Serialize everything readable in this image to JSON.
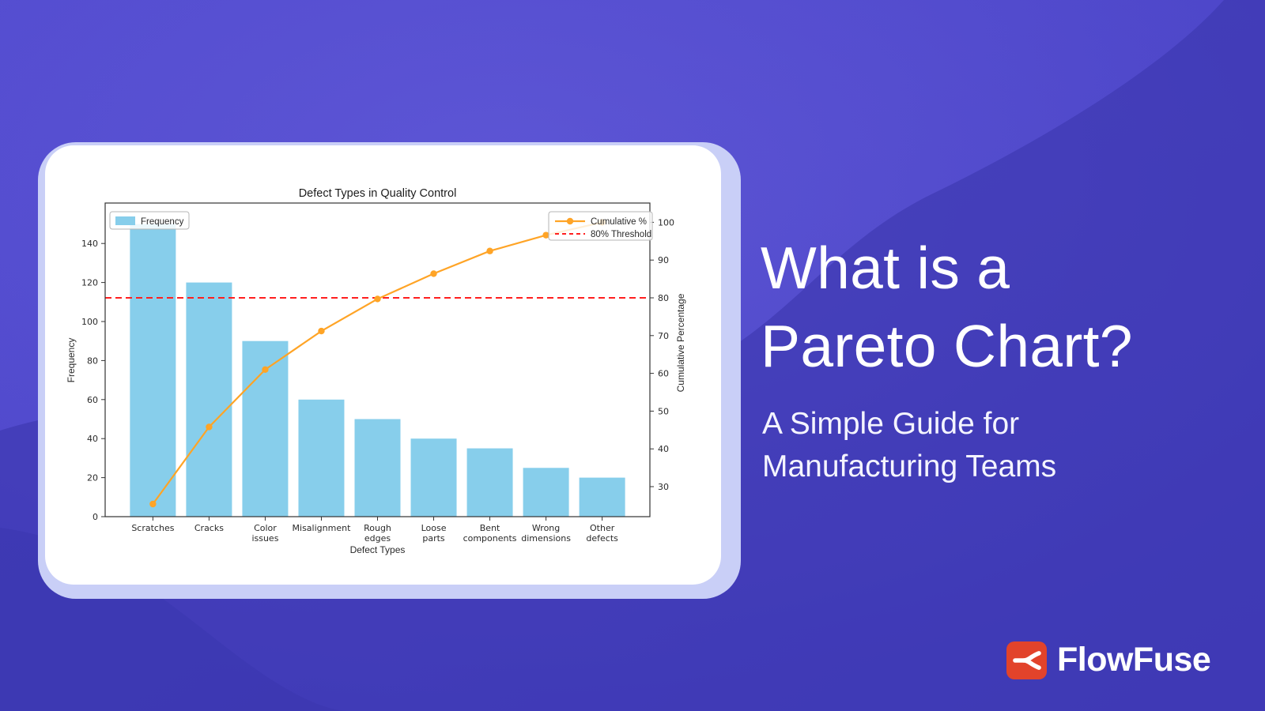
{
  "palette": {
    "bg_base": "#4a43c6",
    "bg_dark_wave": "#3b37ae",
    "bg_light_wave": "#6a63e0",
    "card_bg": "#ffffff",
    "card_glow": "#c9cff7",
    "brand_red": "#e2432b",
    "text_on_dark": "#ffffff"
  },
  "hero": {
    "title_line1": "What is a",
    "title_line2": "Pareto Chart?",
    "subtitle_line1": "A Simple Guide for",
    "subtitle_line2": "Manufacturing Teams"
  },
  "brand": {
    "name": "FlowFuse"
  },
  "chart_data": {
    "type": "bar",
    "subtype": "pareto (bar + cumulative line)",
    "title": "Defect Types in Quality Control",
    "xlabel": "Defect Types",
    "ylabel_left": "Frequency",
    "ylabel_right": "Cumulative Percentage",
    "categories": [
      "Scratches",
      "Cracks",
      "Color issues",
      "Misalignment",
      "Rough edges",
      "Loose parts",
      "Bent components",
      "Wrong dimensions",
      "Other defects"
    ],
    "tick_lines": [
      [
        "Scratches"
      ],
      [
        "Cracks"
      ],
      [
        "Color",
        "issues"
      ],
      [
        "Misalignment"
      ],
      [
        "Rough",
        "edges"
      ],
      [
        "Loose",
        "parts"
      ],
      [
        "Bent",
        "components"
      ],
      [
        "Wrong",
        "dimensions"
      ],
      [
        "Other",
        "defects"
      ]
    ],
    "series": [
      {
        "name": "Frequency",
        "type": "bar",
        "color": "#87CEEB",
        "values": [
          150,
          120,
          90,
          60,
          50,
          40,
          35,
          25,
          20
        ]
      },
      {
        "name": "Cumulative %",
        "type": "line",
        "color": "#FFA426",
        "values": [
          25.4,
          45.8,
          61.0,
          71.2,
          79.7,
          86.4,
          92.4,
          96.6,
          100.0
        ]
      }
    ],
    "threshold": {
      "label": "80% Threshold",
      "value": 80,
      "color": "#ff1f1f",
      "style": "dashed"
    },
    "axes": {
      "left_ticks": [
        0,
        20,
        40,
        60,
        80,
        100,
        120,
        140
      ],
      "left_range": [
        0,
        158
      ],
      "right_ticks": [
        30,
        40,
        50,
        60,
        70,
        80,
        90,
        100
      ],
      "right_range": [
        22,
        105
      ],
      "grid": false
    },
    "legend": {
      "bar_label": "Frequency",
      "line_label": "Cumulative %",
      "threshold_label": "80% Threshold",
      "positions": [
        "upper left",
        "upper right"
      ]
    }
  }
}
